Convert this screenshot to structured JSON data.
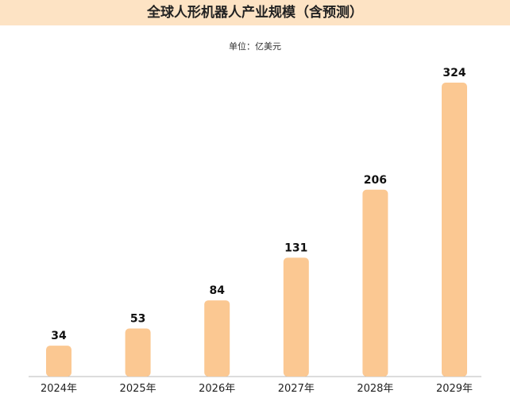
{
  "colors": {
    "band": "#fde3c4",
    "bar": "#fbc892",
    "axis": "#b8b8b8"
  },
  "chart_data": {
    "type": "bar",
    "title": "全球人形机器人产业规模（含预测）",
    "subtitle": "单位：亿美元",
    "categories": [
      "2024年",
      "2025年",
      "2026年",
      "2027年",
      "2028年",
      "2029年"
    ],
    "values": [
      34,
      53,
      84,
      131,
      206,
      324
    ],
    "ylim": [
      0,
      324
    ],
    "grid": false,
    "legend": "none"
  }
}
